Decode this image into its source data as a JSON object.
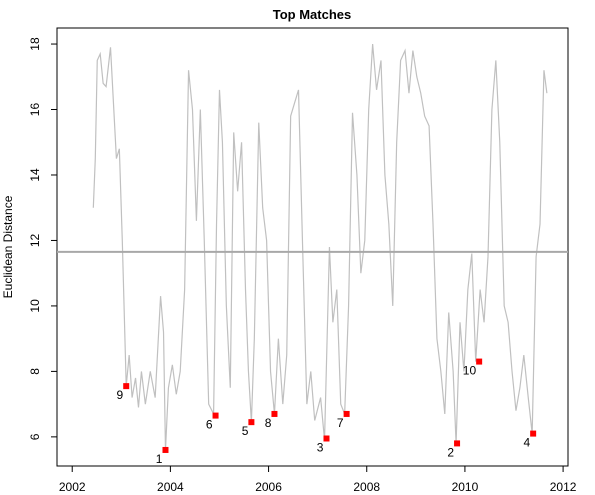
{
  "chart_data": {
    "type": "line",
    "title": "Top Matches",
    "ylabel": "Euclidean Distance",
    "xlim": [
      2001.69,
      2012.1
    ],
    "ylim": [
      5.11,
      18.49
    ],
    "xticks": [
      2002,
      2004,
      2006,
      2008,
      2010,
      2012
    ],
    "yticks": [
      6,
      8,
      10,
      12,
      14,
      16,
      18
    ],
    "line_color": "#c0c0c0",
    "hline": 11.65,
    "hline_color": "#a8a8a8",
    "x": [
      2002.43,
      2002.47,
      2002.51,
      2002.57,
      2002.63,
      2002.69,
      2002.78,
      2002.84,
      2002.9,
      2002.96,
      2003.02,
      2003.1,
      2003.16,
      2003.22,
      2003.29,
      2003.35,
      2003.41,
      2003.49,
      2003.59,
      2003.69,
      2003.8,
      2003.86,
      2003.9,
      2003.96,
      2004.04,
      2004.12,
      2004.2,
      2004.29,
      2004.37,
      2004.45,
      2004.53,
      2004.61,
      2004.69,
      2004.78,
      2004.88,
      2004.94,
      2005.0,
      2005.06,
      2005.14,
      2005.22,
      2005.29,
      2005.37,
      2005.45,
      2005.53,
      2005.59,
      2005.65,
      2005.71,
      2005.8,
      2005.88,
      2005.96,
      2006.04,
      2006.12,
      2006.2,
      2006.29,
      2006.37,
      2006.45,
      2006.53,
      2006.61,
      2006.69,
      2006.78,
      2006.86,
      2006.94,
      2007.06,
      2007.14,
      2007.24,
      2007.31,
      2007.39,
      2007.47,
      2007.55,
      2007.63,
      2007.71,
      2007.8,
      2007.88,
      2007.96,
      2008.04,
      2008.12,
      2008.2,
      2008.29,
      2008.37,
      2008.45,
      2008.53,
      2008.61,
      2008.69,
      2008.78,
      2008.86,
      2008.94,
      2009.02,
      2009.1,
      2009.18,
      2009.27,
      2009.35,
      2009.43,
      2009.51,
      2009.59,
      2009.67,
      2009.76,
      2009.82,
      2009.9,
      2009.98,
      2010.06,
      2010.14,
      2010.22,
      2010.31,
      2010.39,
      2010.47,
      2010.55,
      2010.63,
      2010.71,
      2010.8,
      2010.88,
      2010.96,
      2011.04,
      2011.12,
      2011.2,
      2011.29,
      2011.37,
      2011.45,
      2011.53,
      2011.61,
      2011.67
    ],
    "values": [
      13.0,
      14.5,
      17.5,
      17.7,
      16.8,
      16.7,
      17.9,
      16.2,
      14.5,
      14.8,
      12.0,
      7.55,
      8.5,
      7.2,
      7.8,
      6.9,
      8.0,
      7.0,
      8.0,
      7.2,
      10.3,
      9.2,
      5.6,
      7.5,
      8.2,
      7.3,
      8.0,
      10.5,
      17.2,
      16.0,
      12.6,
      16.0,
      12.0,
      7.0,
      6.7,
      12.5,
      16.6,
      15.0,
      10.0,
      7.5,
      15.3,
      13.5,
      15.0,
      10.5,
      8.0,
      6.45,
      9.0,
      15.6,
      13.0,
      12.0,
      8.0,
      6.7,
      9.0,
      7.0,
      8.5,
      15.8,
      16.2,
      16.6,
      12.0,
      7.0,
      8.0,
      6.5,
      7.2,
      5.9,
      11.8,
      9.5,
      10.5,
      7.0,
      6.7,
      10.0,
      15.9,
      14.0,
      11.0,
      12.0,
      16.0,
      18.0,
      16.6,
      17.5,
      14.0,
      12.5,
      10.0,
      15.0,
      17.5,
      17.8,
      16.5,
      17.8,
      17.0,
      16.5,
      15.8,
      15.5,
      12.5,
      9.0,
      8.0,
      6.7,
      9.8,
      8.0,
      5.8,
      9.5,
      8.0,
      10.5,
      11.6,
      8.3,
      10.5,
      9.5,
      11.5,
      16.0,
      17.5,
      15.0,
      10.0,
      9.5,
      8.0,
      6.8,
      7.5,
      8.5,
      7.2,
      6.1,
      11.5,
      12.5,
      17.2,
      16.5
    ],
    "matches": {
      "color": "#ff0000",
      "labels": [
        "1",
        "2",
        "3",
        "4",
        "5",
        "6",
        "7",
        "8",
        "9",
        "10"
      ],
      "x": [
        2003.9,
        2009.84,
        2007.18,
        2011.39,
        2005.65,
        2004.92,
        2007.59,
        2006.12,
        2003.1,
        2010.29
      ],
      "values": [
        5.6,
        5.8,
        5.95,
        6.1,
        6.45,
        6.65,
        6.7,
        6.7,
        7.55,
        8.3
      ]
    }
  }
}
